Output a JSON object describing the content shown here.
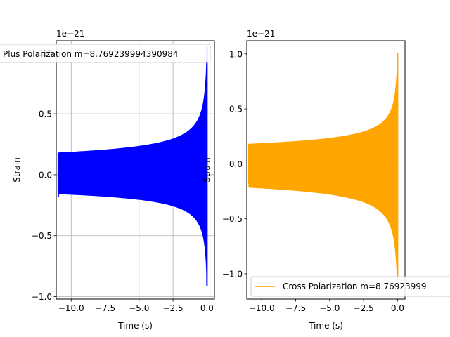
{
  "chart_data": [
    {
      "type": "line",
      "xlabel": "Time (s)",
      "ylabel": "Strain",
      "offset_text": "1e−21",
      "y_scale_factor": 1e-21,
      "xlim": [
        -11.1,
        0.55
      ],
      "ylim": [
        -1.02,
        1.1
      ],
      "xticks": [
        {
          "value": -10.0,
          "label": "−10.0"
        },
        {
          "value": -7.5,
          "label": "−7.5"
        },
        {
          "value": -5.0,
          "label": "−5.0"
        },
        {
          "value": -2.5,
          "label": "−2.5"
        },
        {
          "value": 0.0,
          "label": "0.0"
        }
      ],
      "yticks": [
        {
          "value": -1.0,
          "label": "−1.0"
        },
        {
          "value": -0.5,
          "label": "−0.5"
        },
        {
          "value": 0.0,
          "label": "0.0"
        },
        {
          "value": 0.5,
          "label": "0.5"
        },
        {
          "value": 1.0,
          "label": "1.0"
        }
      ],
      "grid": true,
      "legend_position": "upper-left",
      "series": [
        {
          "name": "Plus Polarization m=8.769239994390984",
          "color": "#0000ff",
          "t_start": -10.95,
          "t_peak": 0.0,
          "t_end": 0.05,
          "start_amplitude": 0.18,
          "peak_upper": 1.05,
          "peak_lower": -0.91
        }
      ]
    },
    {
      "type": "line",
      "xlabel": "Time (s)",
      "ylabel": "Strain",
      "offset_text": "1e−21",
      "y_scale_factor": 1e-21,
      "xlim": [
        -11.1,
        0.55
      ],
      "ylim": [
        -1.23,
        1.12
      ],
      "xticks": [
        {
          "value": -10.0,
          "label": "−10.0"
        },
        {
          "value": -7.5,
          "label": "−7.5"
        },
        {
          "value": -5.0,
          "label": "−5.0"
        },
        {
          "value": -2.5,
          "label": "−2.5"
        },
        {
          "value": 0.0,
          "label": "0.0"
        }
      ],
      "yticks": [
        {
          "value": -1.0,
          "label": "−1.0"
        },
        {
          "value": -0.5,
          "label": "−0.5"
        },
        {
          "value": 0.0,
          "label": "0.0"
        },
        {
          "value": 0.5,
          "label": "0.5"
        },
        {
          "value": 1.0,
          "label": "1.0"
        }
      ],
      "grid": false,
      "legend_position": "lower-left",
      "series": [
        {
          "name": "Cross Polarization m=8.76923999",
          "color": "#ffa500",
          "t_start": -10.95,
          "t_peak": 0.0,
          "t_end": 0.05,
          "start_amplitude": 0.18,
          "peak_upper": 1.01,
          "peak_lower": -1.2
        }
      ]
    }
  ]
}
